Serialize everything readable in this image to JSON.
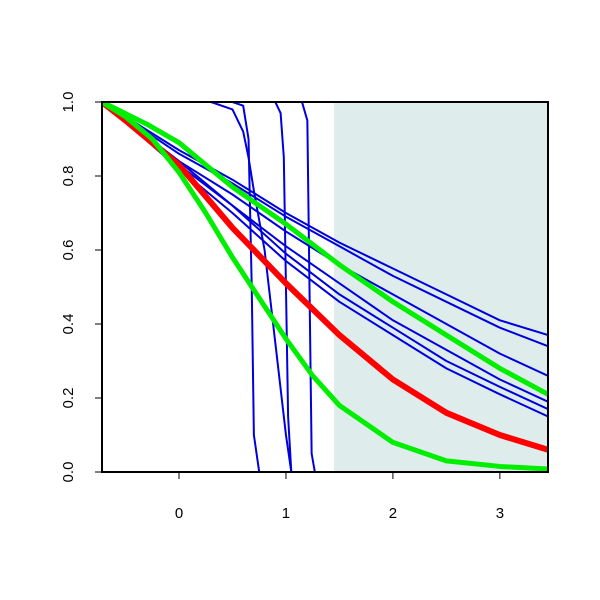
{
  "chart_data": {
    "type": "line",
    "title": "",
    "xlabel": "",
    "ylabel": "",
    "xlim": [
      -0.72,
      3.45
    ],
    "ylim": [
      0.0,
      1.0
    ],
    "x_ticks": [
      0,
      1,
      2,
      3
    ],
    "x_tick_labels": [
      "0",
      "1",
      "2",
      "3"
    ],
    "y_ticks": [
      0.0,
      0.2,
      0.4,
      0.6,
      0.8,
      1.0
    ],
    "y_tick_labels": [
      "0.0",
      "0.2",
      "0.4",
      "0.6",
      "0.8",
      "1.0"
    ],
    "grid": false,
    "legend": "none",
    "shaded_region": {
      "x_start": 1.45,
      "x_end": 3.45,
      "color": "#dfecec"
    },
    "series": [
      {
        "color": "#0000dd",
        "width": 2,
        "x": [
          -0.72,
          0.0,
          0.5,
          0.6,
          0.65,
          0.68,
          0.7,
          0.75,
          3.45
        ],
        "y": [
          1.0,
          1.0,
          1.0,
          0.99,
          0.9,
          0.5,
          0.1,
          0.0,
          0.0
        ]
      },
      {
        "color": "#0000dd",
        "width": 2,
        "x": [
          -0.72,
          0.3,
          0.5,
          0.6,
          0.65,
          0.7,
          0.8,
          0.9,
          1.0,
          1.05,
          3.45
        ],
        "y": [
          1.0,
          1.0,
          0.98,
          0.92,
          0.85,
          0.76,
          0.6,
          0.35,
          0.1,
          0.0,
          0.0
        ]
      },
      {
        "color": "#0000dd",
        "width": 2,
        "x": [
          -0.72,
          0.9,
          0.95,
          0.98,
          1.0,
          1.02,
          1.05,
          3.45
        ],
        "y": [
          1.0,
          1.0,
          0.97,
          0.85,
          0.5,
          0.15,
          0.0,
          0.0
        ]
      },
      {
        "color": "#0000dd",
        "width": 2,
        "x": [
          -0.72,
          1.15,
          1.2,
          1.22,
          1.24,
          1.27,
          3.45
        ],
        "y": [
          1.0,
          1.0,
          0.95,
          0.5,
          0.05,
          0.0,
          0.0
        ]
      },
      {
        "color": "#0000dd",
        "width": 2,
        "x": [
          -0.72,
          0.0,
          0.5,
          1.0,
          1.5,
          2.0,
          2.5,
          3.0,
          3.45
        ],
        "y": [
          1.0,
          0.87,
          0.79,
          0.7,
          0.62,
          0.55,
          0.48,
          0.41,
          0.37
        ]
      },
      {
        "color": "#0000dd",
        "width": 2,
        "x": [
          -0.72,
          0.0,
          0.5,
          1.0,
          1.5,
          2.0,
          2.5,
          3.0,
          3.45
        ],
        "y": [
          1.0,
          0.86,
          0.78,
          0.69,
          0.61,
          0.53,
          0.46,
          0.39,
          0.34
        ]
      },
      {
        "color": "#0000dd",
        "width": 2,
        "x": [
          -0.72,
          0.0,
          0.5,
          1.0,
          1.5,
          2.0,
          2.5,
          3.0,
          3.45
        ],
        "y": [
          1.0,
          0.84,
          0.75,
          0.65,
          0.56,
          0.48,
          0.4,
          0.32,
          0.26
        ]
      },
      {
        "color": "#0000dd",
        "width": 2,
        "x": [
          -0.72,
          0.0,
          0.5,
          1.0,
          1.5,
          2.0,
          2.5,
          3.0,
          3.45
        ],
        "y": [
          1.0,
          0.83,
          0.72,
          0.61,
          0.51,
          0.41,
          0.33,
          0.25,
          0.19
        ]
      },
      {
        "color": "#0000dd",
        "width": 2,
        "x": [
          -0.72,
          0.0,
          0.5,
          1.0,
          1.5,
          2.0,
          2.5,
          3.0,
          3.45
        ],
        "y": [
          1.0,
          0.84,
          0.72,
          0.59,
          0.48,
          0.39,
          0.3,
          0.23,
          0.17
        ]
      },
      {
        "color": "#0000dd",
        "width": 2,
        "x": [
          -0.72,
          0.0,
          0.5,
          1.0,
          1.5,
          2.0,
          2.5,
          3.0,
          3.45
        ],
        "y": [
          1.0,
          0.82,
          0.7,
          0.57,
          0.46,
          0.37,
          0.28,
          0.21,
          0.15
        ]
      },
      {
        "color": "#00ee00",
        "width": 5,
        "x": [
          -0.72,
          -0.3,
          0.0,
          0.5,
          1.0,
          1.5,
          2.0,
          2.5,
          3.0,
          3.45
        ],
        "y": [
          1.0,
          0.94,
          0.89,
          0.77,
          0.67,
          0.56,
          0.46,
          0.37,
          0.28,
          0.21
        ]
      },
      {
        "color": "#ff0000",
        "width": 6,
        "x": [
          -0.72,
          -0.5,
          0.0,
          0.5,
          1.0,
          1.5,
          2.0,
          2.5,
          3.0,
          3.45
        ],
        "y": [
          1.0,
          0.95,
          0.83,
          0.66,
          0.51,
          0.37,
          0.25,
          0.16,
          0.1,
          0.06
        ]
      },
      {
        "color": "#00ee00",
        "width": 5,
        "x": [
          -0.72,
          -0.5,
          -0.25,
          0.0,
          0.25,
          0.5,
          0.75,
          1.0,
          1.25,
          1.5,
          2.0,
          2.5,
          3.0,
          3.45
        ],
        "y": [
          1.0,
          0.96,
          0.9,
          0.81,
          0.7,
          0.58,
          0.47,
          0.36,
          0.26,
          0.18,
          0.08,
          0.03,
          0.015,
          0.008
        ]
      }
    ]
  }
}
